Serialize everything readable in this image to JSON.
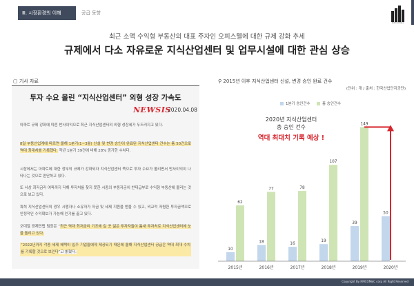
{
  "header": {
    "section": "Ⅲ. 시장환경의 이해",
    "subsection": "공급 동향",
    "logo_label": "RMCOM&C"
  },
  "subtitle": "최근 소액 수익형 부동산의 대표 주자인 오피스텔에 대한 규제 강화 추세",
  "title": "규제에서 다소 자유로운 지식산업센터 및 업무시설에 대한 관심 상승",
  "article": {
    "label": "기사 자료",
    "headline": "투자 수요 몰린 “지식산업센터” 외형 성장 가속도",
    "source": "NEWSIS",
    "date": "2020.04.08",
    "p1": "아파트 규제 강화에 따른 반사이익으로 최근 지식산업센터의 외형 성장세가 두드러지고 있다.",
    "p2a": "8일 부동산업계에 따르면 올해 1분기(1~3월) 신설 및 변경 승인이 완료된 지식산업센터 건수는 총 50건으로 역대 최대치를 기록했다.",
    "p2b": " 작년 1분기 39건에 비해 28% 증가한 수치다.",
    "p3": "시장에서는 아파트에 대한 정부의 규제가 강화되자 지식산업센터 쪽으로 투자 수요가 몰리면서 반사이익이 나타나는 것으로 판단하고 있다.",
    "p4": "또 사상 최저금리 여파까지 더해 투자처를 찾지 못한 시중의 부동자금이 반대급부로 수익형 부동산에 몰리는 것으로 보고 있다.",
    "p5": "특히 지식산업센터의 경우 시행자나 소유자가 자금 및 세제 지원을 받을 수 있고, 비교적 저렴한 투자금액으로 안정적인 수익확보가 가능해 인기를 끌고 있다.",
    "p6a": "오대열 경제만랩 팀장은 “",
    "p6b": "최근 역대 최저금리 기조에 갈 곳 잃은 투자자들이 틈새 투자처로 지식산업센터에 눈을 돌리고 있다.",
    "p7a": "“2022년까지 각종 세제 혜택이 입주 기업들에게 제공되기 때문에 올해 지식산업센터 공급은 역대 최대 수치를 기록할 것으로 보인다",
    "p7b": "”고 밝혔다."
  },
  "chart_header": {
    "label": "2015년 이후 지식산업센터 신설, 변경 승인 완료 건수",
    "unit": "(단위 : 개 / 출처 : 한국산업단지공단)",
    "annotation_line1": "2020년 지식산업센터",
    "annotation_line2": "총 승인 건수",
    "annotation_emph": "역대 최대치 기록 예상 !"
  },
  "footer": "Copyright By RMCOM&C corp All Right Reserved",
  "colors": {
    "q1": "#c2d6ec",
    "total": "#cfe4b4",
    "accent": "#d7262e",
    "dark": "#3f4a5c"
  },
  "chart_data": {
    "type": "bar",
    "categories": [
      "2015년",
      "2016년",
      "2017년",
      "2018년",
      "2019년",
      "2020년"
    ],
    "series": [
      {
        "name": "1분기 승인건수",
        "values": [
          10,
          18,
          16,
          19,
          39,
          50
        ]
      },
      {
        "name": "총 승인건수",
        "values": [
          62,
          77,
          78,
          107,
          149,
          null
        ]
      }
    ],
    "ylim": [
      0,
      160
    ],
    "legend": "top",
    "grid": false
  }
}
